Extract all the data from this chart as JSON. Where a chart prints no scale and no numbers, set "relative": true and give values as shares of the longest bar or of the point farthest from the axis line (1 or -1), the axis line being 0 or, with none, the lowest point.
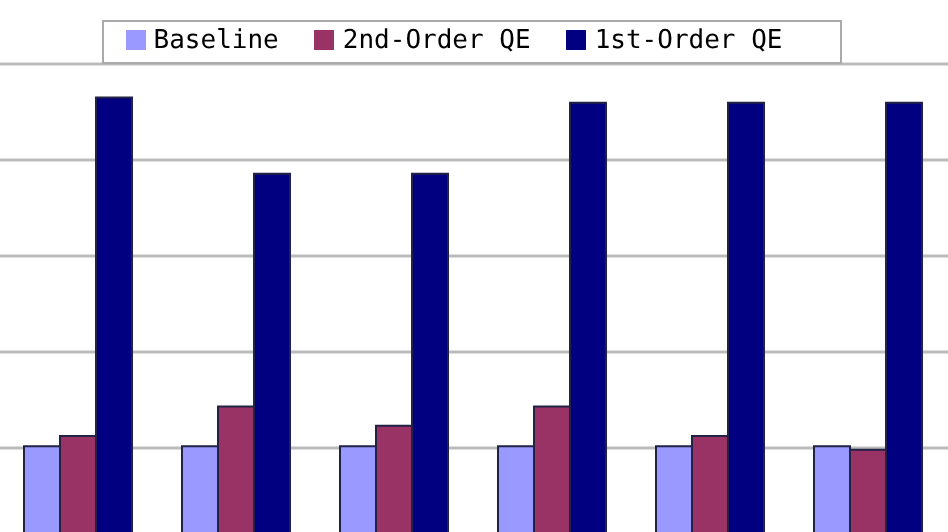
{
  "chart_data": {
    "type": "bar",
    "relative": true,
    "categories": [
      null,
      null,
      null,
      null,
      null,
      null
    ],
    "series": [
      {
        "name": "Baseline",
        "color": "#9999ff",
        "values": [
          0.219,
          0.219,
          0.219,
          0.219,
          0.219,
          0.219
        ]
      },
      {
        "name": "2nd-Order QE",
        "color": "#993366",
        "values": [
          0.242,
          0.308,
          0.265,
          0.308,
          0.242,
          0.211
        ]
      },
      {
        "name": "1st-Order QE",
        "color": "#000080",
        "values": [
          1,
          0.829,
          0.829,
          0.988,
          0.988,
          0.988
        ]
      }
    ],
    "grid": "y",
    "legend": "top"
  }
}
